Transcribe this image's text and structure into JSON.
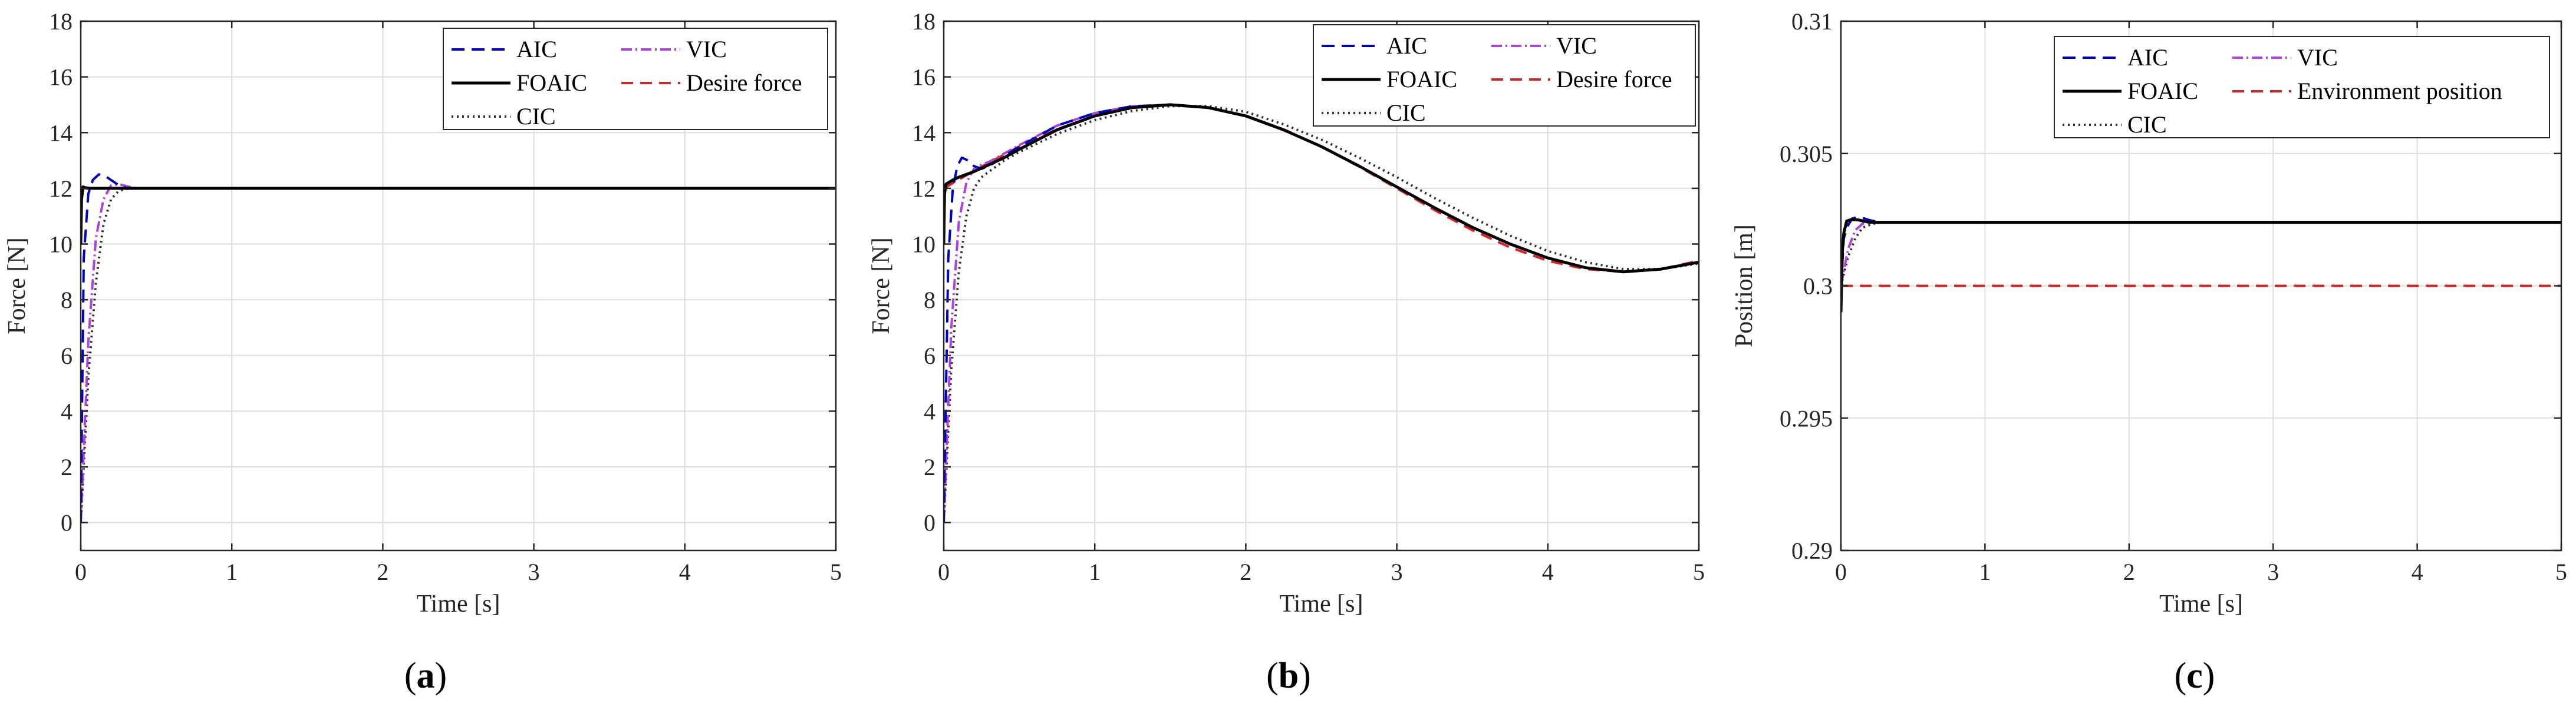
{
  "chart_data": [
    {
      "type": "line",
      "caption": "a",
      "xlabel": "Time [s]",
      "ylabel": "Force [N]",
      "xlim": [
        0,
        5
      ],
      "ylim": [
        -1,
        18
      ],
      "xticks": [
        0,
        1,
        2,
        3,
        4,
        5
      ],
      "yticks": [
        0,
        2,
        4,
        6,
        8,
        10,
        12,
        14,
        16,
        18
      ],
      "ytick_labels": [
        "0",
        "2",
        "4",
        "6",
        "8",
        "10",
        "12",
        "14",
        "16",
        "18"
      ],
      "grid": true,
      "legend": {
        "position": "top-right",
        "columns": 2,
        "entries": [
          {
            "label": "AIC",
            "key": "aic"
          },
          {
            "label": "VIC",
            "key": "vic"
          },
          {
            "label": "FOAIC",
            "key": "foaic"
          },
          {
            "label": "Desire force",
            "key": "desired"
          },
          {
            "label": "CIC",
            "key": "cic"
          }
        ]
      },
      "series": [
        {
          "key": "aic",
          "name": "AIC",
          "x": [
            0,
            0.02,
            0.05,
            0.08,
            0.12,
            0.16,
            0.2,
            0.25,
            0.3,
            0.4,
            5
          ],
          "y": [
            0,
            9.5,
            11.8,
            12.3,
            12.5,
            12.45,
            12.3,
            12.12,
            12.02,
            12,
            12
          ]
        },
        {
          "key": "vic",
          "name": "VIC",
          "x": [
            0,
            0.05,
            0.1,
            0.15,
            0.2,
            0.25,
            0.3,
            0.35,
            0.4,
            5
          ],
          "y": [
            0,
            6.5,
            10.2,
            11.6,
            12.1,
            12.15,
            12.08,
            12.02,
            12,
            12
          ]
        },
        {
          "key": "foaic",
          "name": "FOAIC",
          "x": [
            0,
            0.005,
            0.015,
            0.03,
            0.06,
            5
          ],
          "y": [
            10,
            11.6,
            12.05,
            12.02,
            12,
            12
          ]
        },
        {
          "key": "desired",
          "name": "Desire force",
          "x": [
            0,
            5
          ],
          "y": [
            12,
            12
          ]
        },
        {
          "key": "cic",
          "name": "CIC",
          "x": [
            0,
            0.05,
            0.1,
            0.15,
            0.2,
            0.25,
            0.3,
            0.35,
            0.4,
            5
          ],
          "y": [
            0,
            5.2,
            8.6,
            10.7,
            11.6,
            11.9,
            11.98,
            12,
            12,
            12
          ]
        }
      ]
    },
    {
      "type": "line",
      "caption": "b",
      "xlabel": "Time [s]",
      "ylabel": "Force [N]",
      "xlim": [
        0,
        5
      ],
      "ylim": [
        -1,
        18
      ],
      "xticks": [
        0,
        1,
        2,
        3,
        4,
        5
      ],
      "yticks": [
        0,
        2,
        4,
        6,
        8,
        10,
        12,
        14,
        16,
        18
      ],
      "ytick_labels": [
        "0",
        "2",
        "4",
        "6",
        "8",
        "10",
        "12",
        "14",
        "16",
        "18"
      ],
      "grid": true,
      "legend": {
        "position": "top-right",
        "columns": 2,
        "entries": [
          {
            "label": "AIC",
            "key": "aic"
          },
          {
            "label": "VIC",
            "key": "vic"
          },
          {
            "label": "FOAIC",
            "key": "foaic"
          },
          {
            "label": "Desire force",
            "key": "desired"
          },
          {
            "label": "CIC",
            "key": "cic"
          }
        ]
      },
      "series": [
        {
          "key": "aic",
          "name": "AIC",
          "x": [
            0,
            0.03,
            0.06,
            0.09,
            0.12,
            0.16,
            0.2,
            0.25,
            0.3,
            0.4,
            0.5,
            0.75,
            1,
            1.25,
            1.5,
            1.75,
            2,
            2.25,
            2.5,
            2.75,
            3,
            3.25,
            3.5,
            3.75,
            4,
            4.25,
            4.5,
            4.75,
            5
          ],
          "y": [
            0,
            9.5,
            12,
            12.8,
            13.1,
            13.0,
            12.8,
            12.7,
            12.8,
            13.15,
            13.5,
            14.25,
            14.7,
            14.95,
            15.0,
            14.9,
            14.6,
            14.1,
            13.5,
            12.8,
            12.05,
            11.3,
            10.6,
            10.0,
            9.5,
            9.15,
            9.0,
            9.1,
            9.35
          ]
        },
        {
          "key": "vic",
          "name": "VIC",
          "x": [
            0,
            0.05,
            0.1,
            0.15,
            0.2,
            0.25,
            0.3,
            0.4,
            0.5,
            0.75,
            1,
            1.25,
            1.5,
            1.75,
            2,
            2.25,
            2.5,
            2.75,
            3,
            3.25,
            3.5,
            3.75,
            4,
            4.25,
            4.5,
            4.75,
            5
          ],
          "y": [
            0,
            7,
            10.8,
            12.2,
            12.7,
            12.85,
            12.95,
            13.25,
            13.55,
            14.25,
            14.7,
            14.95,
            15.0,
            14.9,
            14.6,
            14.1,
            13.5,
            12.8,
            12.05,
            11.3,
            10.6,
            10.0,
            9.5,
            9.15,
            9.0,
            9.1,
            9.35
          ]
        },
        {
          "key": "foaic",
          "name": "FOAIC",
          "x": [
            0,
            0.005,
            0.015,
            0.03,
            0.06,
            0.1,
            0.2,
            0.3,
            0.4,
            0.5,
            0.75,
            1,
            1.25,
            1.5,
            1.75,
            2,
            2.25,
            2.5,
            2.75,
            3,
            3.25,
            3.5,
            3.75,
            4,
            4.25,
            4.5,
            4.75,
            5
          ],
          "y": [
            10,
            11.8,
            12.15,
            12.2,
            12.3,
            12.4,
            12.6,
            12.85,
            13.1,
            13.4,
            14.1,
            14.6,
            14.9,
            15.0,
            14.9,
            14.6,
            14.1,
            13.5,
            12.8,
            12.05,
            11.3,
            10.6,
            10.0,
            9.5,
            9.15,
            9.0,
            9.1,
            9.35
          ]
        },
        {
          "key": "desired",
          "name": "Desire force",
          "x": [
            0,
            0.25,
            0.5,
            0.75,
            1,
            1.25,
            1.5,
            1.75,
            2,
            2.25,
            2.5,
            2.75,
            3,
            3.25,
            3.5,
            3.75,
            4,
            4.25,
            4.5,
            4.75,
            5
          ],
          "y": [
            12,
            12.78,
            13.5,
            14.12,
            14.6,
            14.9,
            15.0,
            14.9,
            14.6,
            14.12,
            13.5,
            12.78,
            12.0,
            11.22,
            10.5,
            9.88,
            9.4,
            9.1,
            9.0,
            9.1,
            9.4
          ]
        },
        {
          "key": "cic",
          "name": "CIC",
          "x": [
            0,
            0.05,
            0.1,
            0.15,
            0.2,
            0.25,
            0.3,
            0.4,
            0.5,
            0.75,
            1,
            1.25,
            1.5,
            1.75,
            2,
            2.25,
            2.5,
            2.75,
            3,
            3.25,
            3.5,
            3.75,
            4,
            4.25,
            4.5,
            4.75,
            5
          ],
          "y": [
            0,
            5.5,
            9.0,
            11.0,
            12.0,
            12.4,
            12.6,
            13.0,
            13.3,
            13.95,
            14.45,
            14.78,
            14.95,
            14.95,
            14.75,
            14.3,
            13.75,
            13.1,
            12.4,
            11.65,
            10.95,
            10.3,
            9.75,
            9.35,
            9.1,
            9.1,
            9.3
          ]
        }
      ]
    },
    {
      "type": "line",
      "caption": "c",
      "xlabel": "Time [s]",
      "ylabel": "Position [m]",
      "xlim": [
        0,
        5
      ],
      "ylim": [
        0.29,
        0.31
      ],
      "xticks": [
        0,
        1,
        2,
        3,
        4,
        5
      ],
      "yticks": [
        0.29,
        0.295,
        0.3,
        0.305,
        0.31
      ],
      "ytick_labels": [
        "0.29",
        "0.295",
        "0.3",
        "0.305",
        "0.31"
      ],
      "grid": true,
      "legend": {
        "position": "top-right",
        "columns": 2,
        "entries": [
          {
            "label": "AIC",
            "key": "aic"
          },
          {
            "label": "VIC",
            "key": "vic"
          },
          {
            "label": "FOAIC",
            "key": "foaic"
          },
          {
            "label": "Environment position",
            "key": "environment"
          },
          {
            "label": "CIC",
            "key": "cic"
          }
        ]
      },
      "series": [
        {
          "key": "aic",
          "name": "AIC",
          "x": [
            0,
            0.02,
            0.05,
            0.08,
            0.12,
            0.16,
            0.2,
            0.25,
            0.3,
            5
          ],
          "y": [
            0.3,
            0.3018,
            0.3023,
            0.30255,
            0.3026,
            0.30255,
            0.30248,
            0.30242,
            0.3024,
            0.3024
          ]
        },
        {
          "key": "vic",
          "name": "VIC",
          "x": [
            0,
            0.05,
            0.1,
            0.15,
            0.2,
            0.25,
            0.3,
            5
          ],
          "y": [
            0.3,
            0.3014,
            0.3021,
            0.30235,
            0.3024,
            0.3024,
            0.3024,
            0.3024
          ]
        },
        {
          "key": "foaic",
          "name": "FOAIC",
          "x": [
            0,
            0.01,
            0.02,
            0.04,
            0.07,
            0.1,
            0.13,
            0.16,
            0.2,
            5
          ],
          "y": [
            0.299,
            0.3013,
            0.302,
            0.30245,
            0.3025,
            0.3025,
            0.30248,
            0.30244,
            0.3024,
            0.3024
          ]
        },
        {
          "key": "environment",
          "name": "Environment position",
          "x": [
            0,
            5
          ],
          "y": [
            0.3,
            0.3
          ]
        },
        {
          "key": "cic",
          "name": "CIC",
          "x": [
            0,
            0.05,
            0.1,
            0.15,
            0.2,
            0.25,
            0.3,
            0.4,
            5
          ],
          "y": [
            0.3,
            0.3011,
            0.3018,
            0.3022,
            0.3023,
            0.30238,
            0.3024,
            0.3024,
            0.3024
          ]
        }
      ]
    }
  ],
  "styles": {
    "aic": {
      "color": "#0000cc",
      "dash": "22,12"
    },
    "vic": {
      "color": "#b040e0",
      "dash": "18,6,3,6"
    },
    "foaic": {
      "color": "#000000",
      "dash": ""
    },
    "desired": {
      "color": "#e02020",
      "dash": "20,12"
    },
    "environment": {
      "color": "#e02020",
      "dash": "20,12"
    },
    "cic": {
      "color": "#303030",
      "dash": "3,6"
    },
    "grid_color": "#dedede",
    "axis_color": "#262626"
  }
}
